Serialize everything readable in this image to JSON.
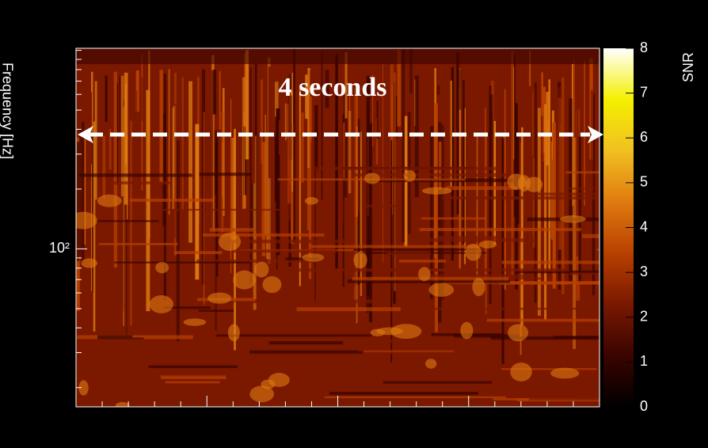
{
  "chart_data": {
    "type": "spectrogram",
    "y_label": "Frequency [Hz]",
    "ylim": [
      16,
      1024
    ],
    "y_log": true,
    "yticks": [
      {
        "value": 100,
        "label": "10²"
      }
    ],
    "colorbar_label": "SNR",
    "zlim": [
      0,
      8
    ],
    "zticks": [
      0,
      1,
      2,
      3,
      4,
      5,
      6,
      7,
      8
    ],
    "colormap": [
      "#000000",
      "#3a0400",
      "#7a1800",
      "#b84000",
      "#e07a10",
      "#f0c020",
      "#f4f000",
      "#ffffff"
    ],
    "annotation": "4 seconds"
  }
}
